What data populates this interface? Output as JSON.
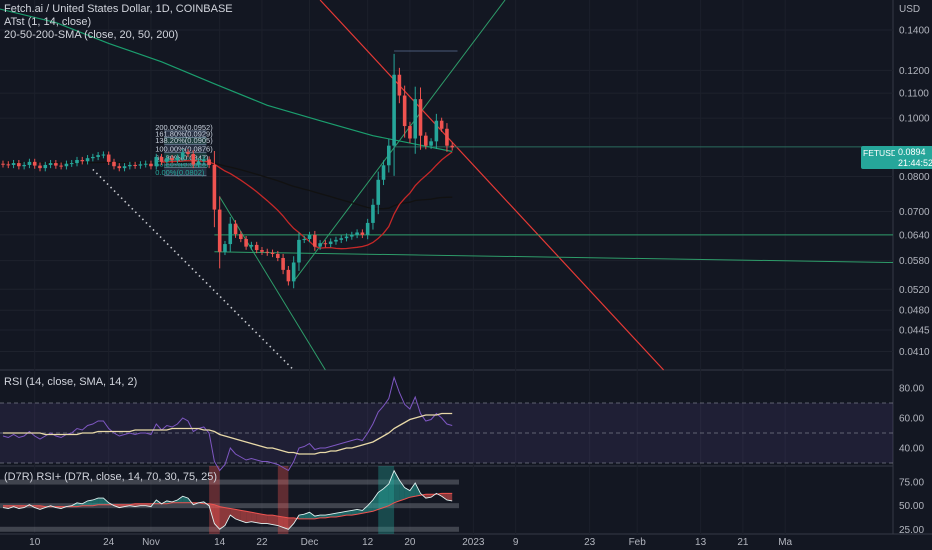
{
  "header": {
    "title": "Fetch.ai / United States Dollar, 1D, COINBASE",
    "indicator_1": "ATst (1, 14, close)",
    "indicator_2": "20-50-200-SMA (close, 20, 50, 200)",
    "currency": "USD"
  },
  "price_tag": {
    "symbol": "FETUSD",
    "price": "0.0894",
    "countdown": "21:44:52"
  },
  "rsi_panel": {
    "title": "RSI (14, close, SMA, 14, 2)"
  },
  "rsi_plus_panel": {
    "title": "(D7R) RSI+ (D7R, close, 14, 70, 30, 75, 25)"
  },
  "colors": {
    "background": "#131722",
    "up": "#26a69a",
    "down": "#ef5350",
    "sma20": "#c62828",
    "sma50": "#111111",
    "sma200": "#1b9e6e",
    "rsi": "#7e57c2",
    "rsi_ma": "#e8d9a8",
    "trend_red": "#e53935",
    "trend_green": "#2e9d6a"
  },
  "chart_data": [
    {
      "type": "candlestick",
      "title": "Fetch.ai / United States Dollar, 1D, COINBASE",
      "ylabel": "USD",
      "yscale": "log",
      "ylim": [
        0.0382,
        0.157
      ],
      "y_ticks": [
        "0.1400",
        "0.1200",
        "0.1100",
        "0.1000",
        "0.0800",
        "0.0700",
        "0.0640",
        "0.0580",
        "0.0520",
        "0.0480",
        "0.0445",
        "0.0410"
      ],
      "x_ticks": [
        "10",
        "24",
        "Nov",
        "14",
        "22",
        "Dec",
        "12",
        "20",
        "2023",
        "9",
        "23",
        "Feb",
        "13",
        "21",
        "Ma"
      ],
      "x_tick_dates": [
        "2022-10-10",
        "2022-10-24",
        "2022-11-01",
        "2022-11-14",
        "2022-11-22",
        "2022-12-01",
        "2022-12-12",
        "2022-12-20",
        "2023-01-01",
        "2023-01-09",
        "2023-01-23",
        "2023-02-01",
        "2023-02-13",
        "2023-02-21",
        "2023-03-01"
      ],
      "date_range": [
        "2022-10-04",
        "2022-12-20"
      ],
      "current_price": 0.0894,
      "close": [
        0.0838,
        0.0836,
        0.0842,
        0.0832,
        0.0836,
        0.0846,
        0.0834,
        0.0826,
        0.0836,
        0.0842,
        0.0834,
        0.0832,
        0.084,
        0.0842,
        0.0852,
        0.0848,
        0.0858,
        0.0862,
        0.0868,
        0.087,
        0.0846,
        0.0832,
        0.0826,
        0.0832,
        0.0836,
        0.0834,
        0.0838,
        0.084,
        0.0832,
        0.0862,
        0.0846,
        0.0858,
        0.0852,
        0.086,
        0.0878,
        0.0872,
        0.0838,
        0.0848,
        0.0854,
        0.0836,
        0.0705,
        0.06,
        0.0618,
        0.0668,
        0.0642,
        0.063,
        0.0612,
        0.0616,
        0.0604,
        0.06,
        0.0598,
        0.0595,
        0.0586,
        0.056,
        0.0536,
        0.0576,
        0.0628,
        0.063,
        0.064,
        0.0612,
        0.062,
        0.0618,
        0.0624,
        0.0628,
        0.0632,
        0.0636,
        0.064,
        0.0646,
        0.064,
        0.067,
        0.0718,
        0.079,
        0.0835,
        0.09,
        0.118,
        0.109,
        0.097,
        0.0925,
        0.1075,
        0.0935,
        0.09,
        0.0915,
        0.099,
        0.096,
        0.09,
        0.0894
      ],
      "sma20_last": 0.0861,
      "sma50_last": 0.0757,
      "sma200_last": 0.088,
      "fibonacci": {
        "levels": [
          "200.00%(0.0952)",
          "161.80%(0.0929)",
          "138.20%(0.0905)",
          "100.00%(0.0876)",
          "61.80%(0.0847)",
          "50.00%(0.0836)",
          "38.20%(0.0828)",
          "0.00%(0.0802)"
        ]
      },
      "horizontal_levels": [
        0.064,
        0.058
      ]
    },
    {
      "type": "line",
      "title": "RSI (14, close, SMA, 14, 2)",
      "ylim": [
        28,
        92
      ],
      "y_ticks": [
        "80.00",
        "60.00",
        "40.00"
      ],
      "bands": [
        70,
        50,
        30
      ],
      "series": [
        {
          "name": "RSI",
          "values": [
            48,
            47,
            49,
            47,
            48,
            51,
            48,
            46,
            48,
            50,
            48,
            47,
            49,
            50,
            53,
            52,
            55,
            56,
            58,
            58,
            53,
            50,
            48,
            49,
            50,
            49,
            50,
            50,
            49,
            56,
            52,
            55,
            54,
            56,
            60,
            58,
            51,
            53,
            54,
            50,
            31,
            25,
            29,
            40,
            36,
            34,
            32,
            33,
            32,
            31,
            31,
            30,
            29,
            27,
            25,
            31,
            40,
            41,
            43,
            39,
            40,
            40,
            41,
            42,
            43,
            44,
            45,
            46,
            45,
            50,
            56,
            64,
            68,
            73,
            87,
            77,
            69,
            66,
            74,
            63,
            58,
            59,
            63,
            60,
            56,
            55
          ]
        },
        {
          "name": "RSI MA",
          "values": [
            50,
            50,
            50,
            50,
            50,
            50,
            50,
            50,
            49,
            49,
            49,
            49,
            49,
            49,
            49,
            50,
            50,
            50,
            51,
            51,
            51,
            51,
            51,
            51,
            51,
            52,
            52,
            52,
            52,
            52,
            52,
            52,
            53,
            53,
            53,
            53,
            53,
            53,
            52,
            52,
            51,
            49,
            48,
            47,
            46,
            45,
            44,
            43,
            42,
            41,
            40,
            40,
            39,
            38,
            37,
            37,
            36,
            36,
            36,
            36,
            37,
            37,
            38,
            38,
            39,
            40,
            40,
            41,
            42,
            43,
            44,
            46,
            48,
            50,
            53,
            55,
            57,
            59,
            60,
            61,
            62,
            62,
            62,
            63,
            63,
            63
          ]
        }
      ]
    },
    {
      "type": "line",
      "title": "(D7R) RSI+ (D7R, close, 14, 70, 30, 75, 25)",
      "ylim": [
        20,
        92
      ],
      "y_ticks": [
        "75.00",
        "50.00",
        "25.00"
      ],
      "bands": [
        75,
        50,
        25
      ],
      "series": [
        {
          "name": "RSI+",
          "values": [
            48,
            47,
            49,
            47,
            48,
            51,
            48,
            46,
            48,
            50,
            48,
            47,
            49,
            50,
            53,
            52,
            55,
            56,
            58,
            58,
            53,
            50,
            48,
            49,
            50,
            49,
            50,
            50,
            49,
            56,
            52,
            55,
            54,
            56,
            60,
            58,
            51,
            53,
            54,
            50,
            31,
            25,
            29,
            40,
            36,
            34,
            32,
            33,
            32,
            31,
            31,
            30,
            29,
            27,
            25,
            31,
            40,
            41,
            43,
            39,
            40,
            40,
            41,
            42,
            43,
            44,
            45,
            46,
            45,
            50,
            56,
            64,
            68,
            73,
            87,
            77,
            69,
            66,
            74,
            63,
            58,
            59,
            63,
            60,
            56,
            55
          ]
        },
        {
          "name": "RSI+ MA",
          "values": [
            50,
            50,
            50,
            50,
            50,
            50,
            50,
            50,
            49,
            49,
            49,
            49,
            49,
            49,
            49,
            50,
            50,
            50,
            51,
            51,
            51,
            51,
            51,
            51,
            51,
            52,
            52,
            52,
            52,
            52,
            52,
            52,
            53,
            53,
            53,
            53,
            53,
            53,
            52,
            52,
            51,
            49,
            48,
            47,
            46,
            45,
            44,
            43,
            42,
            41,
            40,
            40,
            39,
            38,
            37,
            37,
            36,
            36,
            36,
            36,
            37,
            37,
            38,
            38,
            39,
            40,
            40,
            41,
            42,
            43,
            44,
            46,
            48,
            50,
            53,
            55,
            57,
            59,
            60,
            61,
            62,
            62,
            62,
            63,
            63,
            63
          ]
        }
      ]
    }
  ]
}
